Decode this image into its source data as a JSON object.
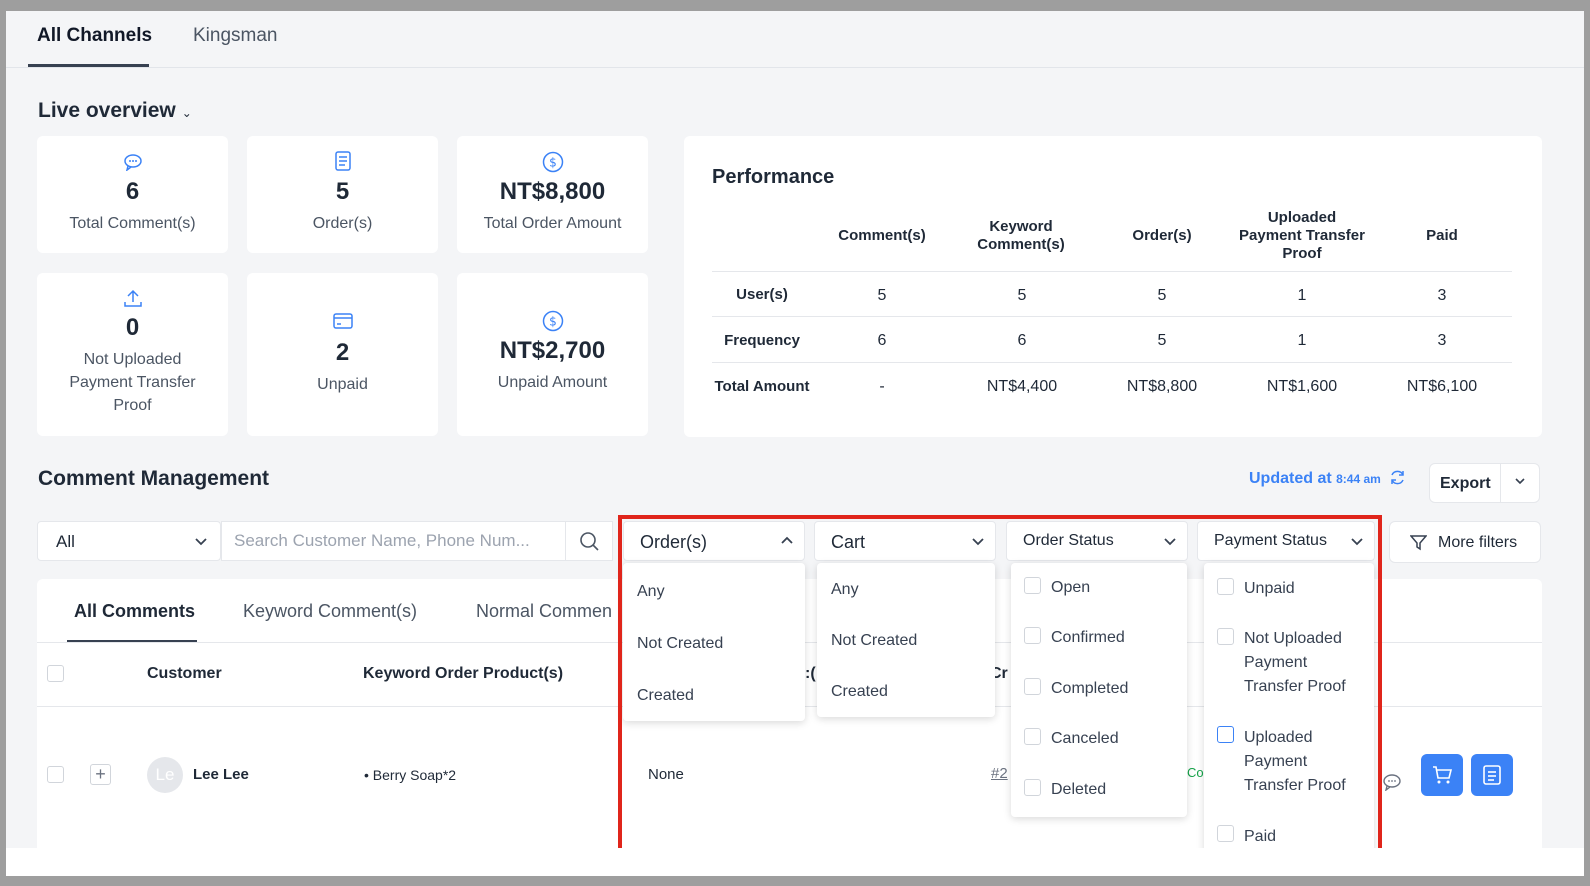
{
  "top_tabs": [
    "All Channels",
    "Kingsman"
  ],
  "live_overview": {
    "title": "Live overview",
    "cards": [
      {
        "icon": "comment-icon",
        "value": "6",
        "label": "Total Comment(s)"
      },
      {
        "icon": "order-icon",
        "value": "5",
        "label": "Order(s)"
      },
      {
        "icon": "dollar-icon",
        "value": "NT$8,800",
        "label": "Total Order Amount"
      },
      {
        "icon": "upload-icon",
        "value": "0",
        "label_lines": [
          "Not Uploaded",
          "Payment Transfer",
          "Proof"
        ]
      },
      {
        "icon": "card-icon",
        "value": "2",
        "label": "Unpaid"
      },
      {
        "icon": "dollar-icon",
        "value": "NT$2,700",
        "label": "Unpaid Amount"
      }
    ]
  },
  "performance": {
    "title": "Performance",
    "headers": [
      [
        "Comment(s)"
      ],
      [
        "Keyword",
        "Comment(s)"
      ],
      [
        "Order(s)"
      ],
      [
        "Uploaded",
        "Payment Transfer",
        "Proof"
      ],
      [
        "Paid"
      ]
    ],
    "rows": [
      {
        "label": "User(s)",
        "values": [
          "5",
          "5",
          "5",
          "1",
          "3"
        ]
      },
      {
        "label": "Frequency",
        "values": [
          "6",
          "6",
          "5",
          "1",
          "3"
        ]
      },
      {
        "label": "Total Amount",
        "values": [
          "-",
          "NT$4,400",
          "NT$8,800",
          "NT$1,600",
          "NT$6,100"
        ]
      }
    ]
  },
  "comment_management": {
    "title": "Comment Management",
    "updated_label": "Updated at",
    "updated_time": "8:44 am",
    "export_label": "Export",
    "scope_select": "All",
    "search_placeholder": "Search Customer Name, Phone Num...",
    "filters": {
      "orders": "Order(s)",
      "cart": "Cart",
      "order_status": "Order Status",
      "payment_status": "Payment Status"
    },
    "more_filters": "More filters",
    "tabs": [
      "All Comments",
      "Keyword Comment(s)",
      "Normal Commen"
    ],
    "columns": {
      "customer": "Customer",
      "products": "Keyword Order Product(s)"
    },
    "peek_text": {
      "col_a": ":(",
      "col_b": "Cr",
      "order_no": "#2",
      "status": "Co"
    },
    "row": {
      "avatar": "Le",
      "name": "Lee Lee",
      "product": "• Berry Soap*2",
      "order": "None"
    }
  },
  "dropdowns": {
    "orders": [
      "Any",
      "Not Created",
      "Created"
    ],
    "cart": [
      "Any",
      "Not Created",
      "Created"
    ],
    "order_status": [
      "Open",
      "Confirmed",
      "Completed",
      "Canceled",
      "Deleted"
    ],
    "payment_status": [
      [
        "Unpaid"
      ],
      [
        "Not Uploaded",
        "Payment",
        "Transfer Proof"
      ],
      [
        "Uploaded",
        "Payment",
        "Transfer Proof"
      ],
      [
        "Paid"
      ]
    ]
  },
  "colors": {
    "accent": "#3b82f6",
    "highlight_border": "#e0251b"
  }
}
